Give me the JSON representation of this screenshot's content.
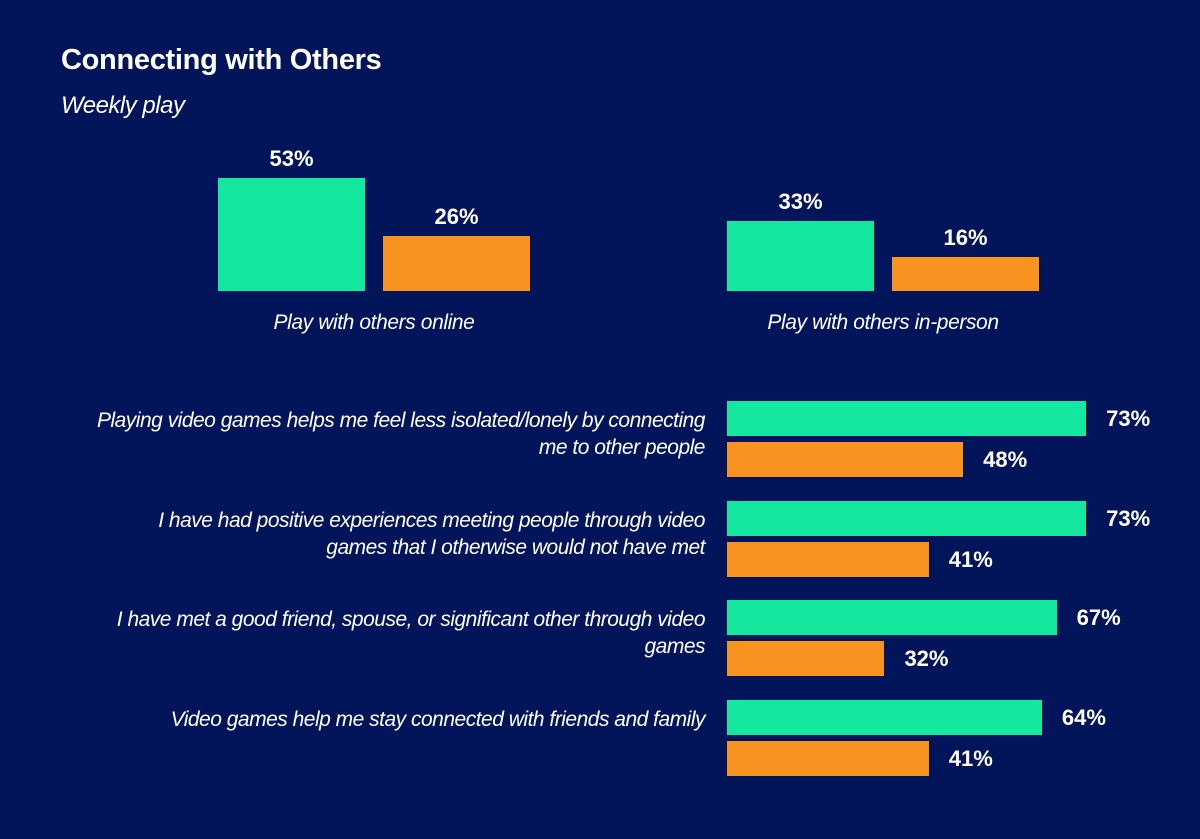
{
  "chart_data": [
    {
      "type": "bar",
      "title": "Connecting with Others",
      "subtitle": "Weekly play",
      "categories": [
        "Play with others online",
        "Play with others in-person"
      ],
      "series": [
        {
          "color": "#13e89e",
          "values": [
            53,
            33
          ],
          "value_labels": [
            "53%",
            "33%"
          ]
        },
        {
          "color": "#f7931e",
          "values": [
            26,
            16
          ],
          "value_labels": [
            "26%",
            "16%"
          ]
        }
      ]
    },
    {
      "type": "barh",
      "categories": [
        "Playing video games helps me feel less isolated/lonely by connecting me to other people",
        "I have had positive experiences meeting people through video games that I otherwise would not have met",
        "I have met a good friend, spouse, or significant other through video games",
        "Video games help me stay connected with friends and family"
      ],
      "series": [
        {
          "color": "#13e89e",
          "values": [
            73,
            73,
            67,
            64
          ],
          "value_labels": [
            "73%",
            "73%",
            "67%",
            "64%"
          ]
        },
        {
          "color": "#f7931e",
          "values": [
            48,
            41,
            32,
            41
          ],
          "value_labels": [
            "48%",
            "41%",
            "32%",
            "41%"
          ]
        }
      ]
    }
  ]
}
